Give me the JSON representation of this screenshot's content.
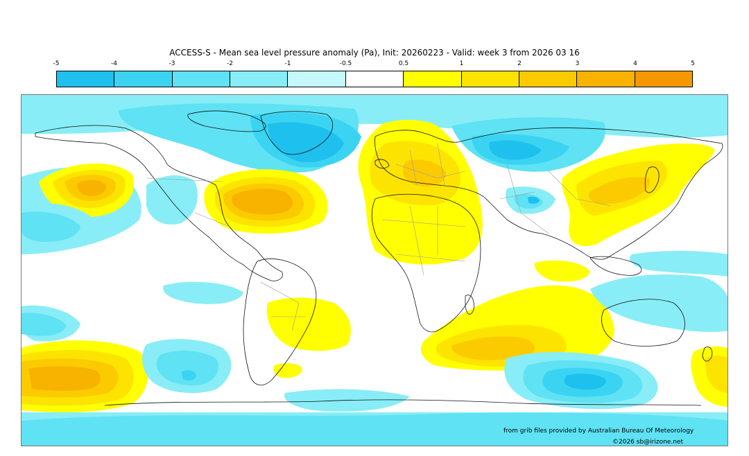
{
  "title": "ACCESS-S - Mean sea level pressure anomaly (Pa), Init: 20260223 - Valid: week 3 from 2026 03 16",
  "legend": {
    "ticks": [
      "-5",
      "-4",
      "-3",
      "-2",
      "-1",
      "-0.5",
      "0.5",
      "1",
      "2",
      "3",
      "4",
      "5"
    ],
    "colors": [
      "#1ec0ee",
      "#3ad4f2",
      "#5ee2f4",
      "#88edf6",
      "#c4f8fa",
      "#ffffff",
      "#ffff00",
      "#fde400",
      "#fbcb00",
      "#f8b200",
      "#f59800"
    ]
  },
  "colors": {
    "land_outline": "#111111",
    "borders": "#9a9a9a",
    "frame": "#777777"
  },
  "credits": {
    "source": "from grib files provided by Australian Bureau Of Meteorology",
    "copyright": "©2026 sb@irizone.net"
  }
}
